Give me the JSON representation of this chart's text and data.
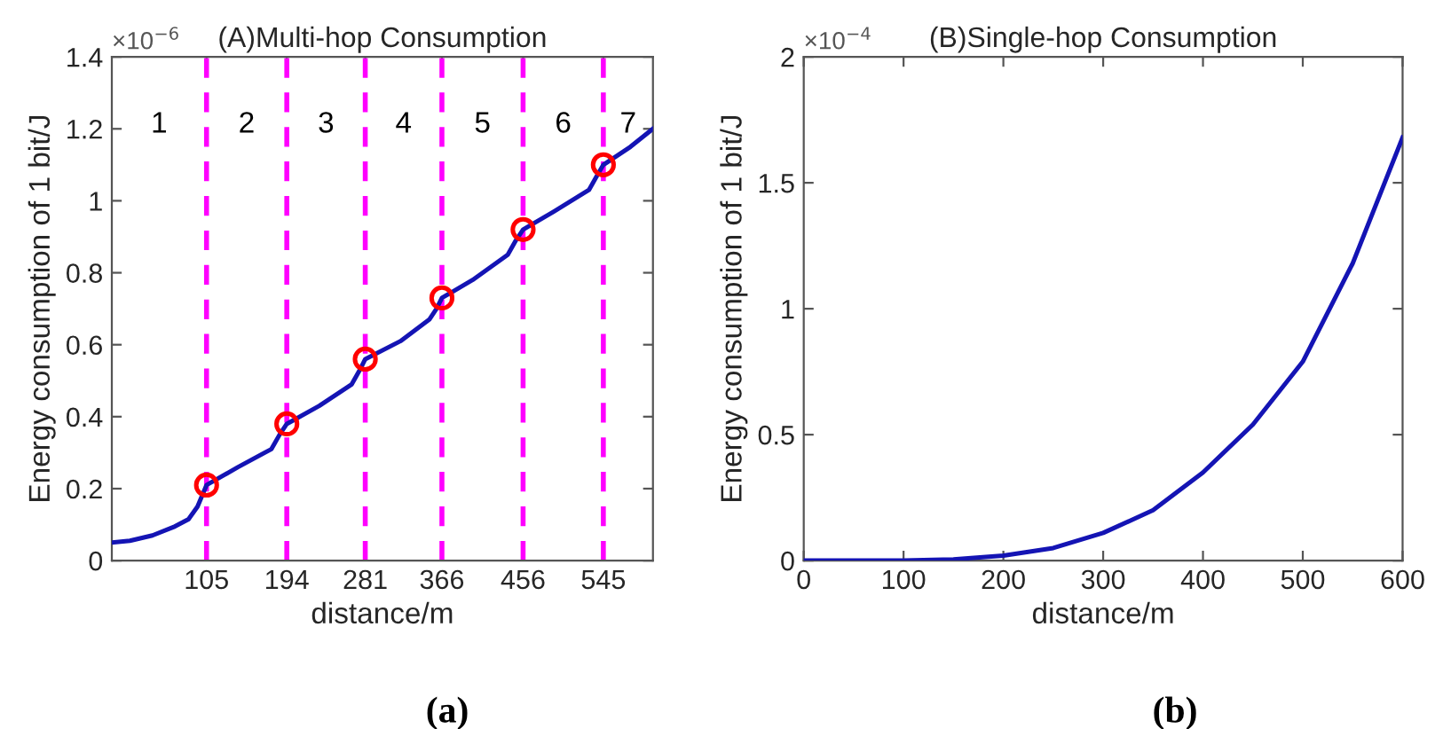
{
  "chart_data": [
    {
      "type": "line",
      "title": "(A)Multi-hop Consumption",
      "xlabel": "distance/m",
      "ylabel": "Energy consumption of 1 bit/J",
      "xlim": [
        0,
        600
      ],
      "ylim": [
        0,
        1.4
      ],
      "xticks": [
        105,
        194,
        281,
        366,
        456,
        545
      ],
      "yticks": [
        0,
        0.2,
        0.4,
        0.6,
        0.8,
        1,
        1.2,
        1.4
      ],
      "grid": false,
      "series": [
        {
          "color": "#1414b4",
          "line_style": "solid",
          "marker": "none",
          "x": [
            0,
            20,
            45,
            70,
            85,
            95,
            105,
            140,
            177,
            186,
            194,
            230,
            266,
            275,
            281,
            320,
            352,
            360,
            366,
            400,
            439,
            448,
            456,
            490,
            529,
            538,
            545,
            575,
            600
          ],
          "values": [
            0.05,
            0.055,
            0.07,
            0.095,
            0.115,
            0.15,
            0.21,
            0.26,
            0.31,
            0.35,
            0.38,
            0.43,
            0.49,
            0.53,
            0.56,
            0.61,
            0.67,
            0.7,
            0.73,
            0.78,
            0.85,
            0.89,
            0.92,
            0.97,
            1.03,
            1.07,
            1.1,
            1.15,
            1.2
          ]
        },
        {
          "type": "scatter",
          "color": "#ff0000",
          "marker": "circle",
          "x": [
            105,
            194,
            281,
            366,
            456,
            545
          ],
          "values": [
            0.21,
            0.38,
            0.56,
            0.73,
            0.92,
            1.1
          ]
        }
      ],
      "ref_lines": [
        {
          "axis": "x",
          "value": 105,
          "color": "#ff00ff",
          "line_style": "dashed"
        },
        {
          "axis": "x",
          "value": 194,
          "color": "#ff00ff",
          "line_style": "dashed"
        },
        {
          "axis": "x",
          "value": 281,
          "color": "#ff00ff",
          "line_style": "dashed"
        },
        {
          "axis": "x",
          "value": 366,
          "color": "#ff00ff",
          "line_style": "dashed"
        },
        {
          "axis": "x",
          "value": 456,
          "color": "#ff00ff",
          "line_style": "dashed"
        },
        {
          "axis": "x",
          "value": 545,
          "color": "#ff00ff",
          "line_style": "dashed"
        }
      ],
      "annotations": [
        "×10$^{−6}$",
        "(a)",
        "1",
        "2",
        "3",
        "4",
        "5",
        "6",
        "7"
      ]
    },
    {
      "type": "line",
      "title": "(B)Single-hop Consumption",
      "xlabel": "distance/m",
      "ylabel": "Energy consumption of 1 bit/J",
      "xlim": [
        0,
        600
      ],
      "ylim": [
        0,
        2
      ],
      "xticks": [
        0,
        100,
        200,
        300,
        400,
        500,
        600
      ],
      "yticks": [
        0,
        0.5,
        1,
        1.5,
        2
      ],
      "grid": false,
      "series": [
        {
          "color": "#1414b4",
          "line_style": "solid",
          "marker": "none",
          "x": [
            0,
            50,
            100,
            150,
            200,
            250,
            300,
            350,
            400,
            450,
            500,
            550,
            600
          ],
          "values": [
            0,
            0,
            0,
            0.005,
            0.02,
            0.05,
            0.11,
            0.2,
            0.35,
            0.54,
            0.79,
            1.18,
            1.68
          ]
        }
      ],
      "annotations": [
        "×10$^{−4}$",
        "(b)"
      ]
    }
  ]
}
